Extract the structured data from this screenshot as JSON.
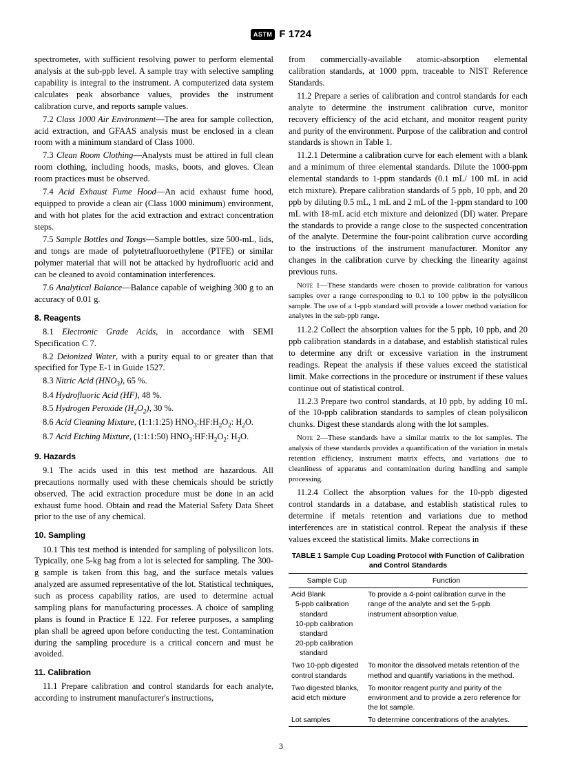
{
  "header": {
    "logo": "ASTM",
    "designation": "F 1724"
  },
  "col1": {
    "p0": "spectrometer, with sufficient resolving power to perform elemental analysis at the sub-ppb level. A sample tray with selective sampling capability is integral to the instrument. A computerized data system calculates peak absorbance values, provides the instrument calibration curve, and reports sample values.",
    "p72n": "7.2 ",
    "p72t": "Class 1000 Air Environment",
    "p72b": "—The area for sample collection, acid extraction, and GFAAS analysis must be enclosed in a clean room with a minimum standard of Class 1000.",
    "p73n": "7.3 ",
    "p73t": "Clean Room Clothing",
    "p73b": "—Analysts must be attired in full clean room clothing, including hoods, masks, boots, and gloves. Clean room practices must be observed.",
    "p74n": "7.4 ",
    "p74t": "Acid Exhaust Fume Hood",
    "p74b": "—An acid exhaust fume hood, equipped to provide a clean air (Class 1000 minimum) environment, and with hot plates for the acid extraction and extract concentration steps.",
    "p75n": "7.5 ",
    "p75t": "Sample Bottles and Tongs",
    "p75b": "—Sample bottles, size 500-mL, lids, and tongs are made of polytetrafluoroethylene (PTFE) or similar polymer material that will not be attacked by hydrofluoric acid and can be cleaned to avoid contamination interferences.",
    "p76n": "7.6 ",
    "p76t": "Analytical Balance",
    "p76b": "—Balance capable of weighing 300 g to an accuracy of 0.01 g.",
    "h8": "8. Reagents",
    "p81n": "8.1 ",
    "p81t": "Electronic Grade Acids",
    "p81b": ", in accordance with SEMI Specification C 7.",
    "p82n": "8.2 ",
    "p82t": "Deionized Water",
    "p82b": ", with a purity equal to or greater than that specified for Type E-1 in Guide 1527.",
    "p83n": "8.3 ",
    "p83t": "Nitric Acid (HNO",
    "p83b": ", 65 %.",
    "p84n": "8.4 ",
    "p84t": "Hydrofluoric Acid (HF)",
    "p84b": ", 48 %.",
    "p85n": "8.5 ",
    "p85t": "Hydrogen Peroxide (H",
    "p85b": ", 30 %.",
    "p86n": "8.6 ",
    "p86t": "Acid Cleaning Mixture",
    "p86b": ", (1:1:1:25) HNO",
    "p87n": "8.7 ",
    "p87t": "Acid Etching Mixture",
    "p87b": ", (1:1:1:50) HNO",
    "h9": "9. Hazards",
    "p91": "9.1 The acids used in this test method are hazardous. All precautions normally used with these chemicals should be strictly observed. The acid extraction procedure must be done in an acid exhaust fume hood. Obtain and read the Material Safety Data Sheet prior to the use of any chemical.",
    "h10": "10. Sampling",
    "p101": "10.1 This test method is intended for sampling of polysilicon lots. Typically, one 5-kg bag from a lot is selected for sampling. The 300-g sample is taken from this bag, and the surface metals values analyzed are assumed representative of the lot. Statistical techniques, such as process capability ratios, are used to determine actual sampling plans for manufacturing processes. A choice of sampling plans is found in Practice E 122. For referee purposes, a sampling plan shall be agreed upon before conducting the test. Contamination during the sampling procedure is a critical concern and must be avoided.",
    "h11": "11. Calibration",
    "p111": "11.1 Prepare calibration and control standards for each analyte, according to instrument manufacturer's instructions,"
  },
  "col2": {
    "p111b": "from commercially-available atomic-absorption elemental calibration standards, at 1000 ppm, traceable to NIST Reference Standards.",
    "p112": "11.2 Prepare a series of calibration and control standards for each analyte to determine the instrument calibration curve, monitor recovery efficiency of the acid etchant, and monitor reagent purity and purity of the environment. Purpose of the calibration and control standards is shown in Table 1.",
    "p1121": "11.2.1 Determine a calibration curve for each element with a blank and a minimum of three elemental standards. Dilute the 1000-ppm elemental standards to 1-ppm standards (0.1 mL/ 100 mL in acid etch mixture). Prepare calibration standards of 5 ppb, 10 ppb, and 20 ppb by diluting 0.5 mL, 1 mL and 2 mL of the 1-ppm standard to 100 mL with 18-mL acid etch mixture and deionized (DI) water. Prepare the standards to provide a range close to the suspected concentration of the analyte. Determine the four-point calibration curve according to the instructions of the instrument manufacturer. Monitor any changes in the calibration curve by checking the linearity against previous runs.",
    "note1l": "Note 1—",
    "note1": "These standards were chosen to provide calibration for various samples over a range corresponding to 0.1 to 100 ppbw in the polysilicon sample. The use of a 1-ppb standard will provide a lower method variation for analytes in the sub-ppb range.",
    "p1122": "11.2.2 Collect the absorption values for the 5 ppb, 10 ppb, and 20 ppb calibration standards in a database, and establish statistical rules to determine any drift or excessive variation in the instrument readings. Repeat the analysis if these values exceed the statistical limit. Make corrections in the procedure or instrument if these values continue out of statistical control.",
    "p1123": "11.2.3 Prepare two control standards, at 10 ppb, by adding 10 mL of the 10-ppb calibration standards to samples of clean polysilicon chunks. Digest these standards along with the lot samples.",
    "note2l": "Note 2—",
    "note2": "These standards have a similar matrix to the lot samples. The analysis of these standards provides a quantification of the variation in metals retention efficiency, instrument matrix effects, and variations due to cleanliness of apparatus and contamination during handling and sample processing.",
    "p1124": "11.2.4 Collect the absorption values for the 10-ppb digested control standards in a database, and establish statistical rules to determine if metals retention and variations due to method interferences are in statistical control. Repeat the analysis if these values exceed the statistical limits. Make corrections in"
  },
  "table": {
    "title": "TABLE 1  Sample Cup Loading Protocol with Function of Calibration and Control Standards",
    "h1": "Sample Cup",
    "h2": "Function",
    "r1a": "Acid Blank",
    "r1b": "5-ppb calibration standard",
    "r1c": "10-ppb calibration standard",
    "r1d": "20-ppb calibration standard",
    "f1": "To provide a 4-point calibration curve in the range of the analyte and set the 5-ppb instrument absorption value.",
    "r2": "Two 10-ppb digested control standards",
    "f2": "To monitor the dissolved metals retention of the method and quantify variations in the method.",
    "r3": "Two digested blanks, acid etch mixture",
    "f3": "To monitor reagent purity and purity of the environment and to provide a zero reference for the lot sample.",
    "r4": "Lot samples",
    "f4": "To determine concentrations of the analytes."
  },
  "pagenum": "3"
}
